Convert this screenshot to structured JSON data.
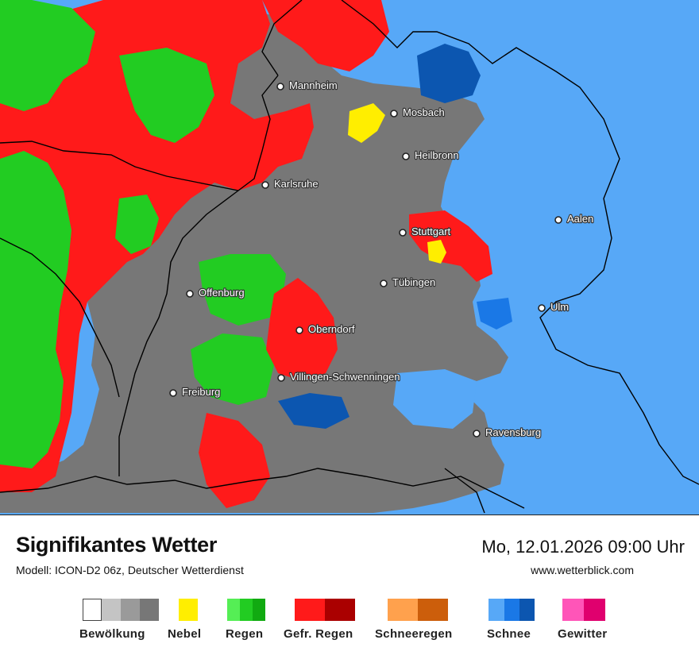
{
  "map": {
    "cities": [
      {
        "id": "mannheim",
        "name": "Mannheim"
      },
      {
        "id": "mosbach",
        "name": "Mosbach"
      },
      {
        "id": "heilbronn",
        "name": "Heilbronn"
      },
      {
        "id": "karlsruhe",
        "name": "Karlsruhe"
      },
      {
        "id": "aalen",
        "name": "Aalen"
      },
      {
        "id": "stuttgart",
        "name": "Stuttgart"
      },
      {
        "id": "tuebingen",
        "name": "Tübingen"
      },
      {
        "id": "offenburg",
        "name": "Offenburg"
      },
      {
        "id": "ulm",
        "name": "Ulm"
      },
      {
        "id": "oberndorf",
        "name": "Oberndorf"
      },
      {
        "id": "villingen",
        "name": "Villingen-Schwenningen"
      },
      {
        "id": "freiburg",
        "name": "Freiburg"
      },
      {
        "id": "ravensburg",
        "name": "Ravensburg"
      }
    ]
  },
  "footer": {
    "title": "Signifikantes Wetter",
    "model": "Modell: ICON-D2 06z, Deutscher Wetterdienst",
    "datetime": "Mo, 12.01.2026 09:00 Uhr",
    "website": "www.wetterblick.com"
  },
  "legend": [
    {
      "id": "bewoelkung",
      "label": "Bewölkung",
      "colors": [
        "#ffffff",
        "#c4c4c4",
        "#9a9a9a",
        "#777777"
      ]
    },
    {
      "id": "nebel",
      "label": "Nebel",
      "colors": [
        "#ffee00"
      ]
    },
    {
      "id": "regen",
      "label": "Regen",
      "colors": [
        "#55ee55",
        "#22cc22",
        "#11aa11"
      ]
    },
    {
      "id": "gefr-regen",
      "label": "Gefr. Regen",
      "colors": [
        "#ff1a1a",
        "#ee1111",
        "#aa0000"
      ]
    },
    {
      "id": "schneeregen",
      "label": "Schneeregen",
      "colors": [
        "#ffa14d",
        "#cc5e0b"
      ]
    },
    {
      "id": "schnee",
      "label": "Schnee",
      "colors": [
        "#57a8f7",
        "#1a78e6",
        "#0c56b0"
      ]
    },
    {
      "id": "gewitter",
      "label": "Gewitter",
      "colors": [
        "#ff55b8",
        "#e0006e"
      ]
    }
  ]
}
